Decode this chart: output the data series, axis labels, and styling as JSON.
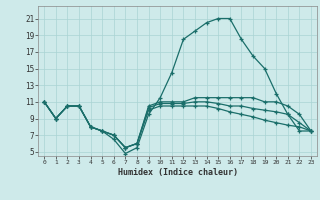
{
  "xlabel": "Humidex (Indice chaleur)",
  "bg_color": "#ceeaea",
  "line_color": "#1a6e6a",
  "grid_color": "#aad4d4",
  "xlim": [
    -0.5,
    23.5
  ],
  "ylim": [
    4.5,
    22.5
  ],
  "yticks": [
    5,
    7,
    9,
    11,
    13,
    15,
    17,
    19,
    21
  ],
  "xticks": [
    0,
    1,
    2,
    3,
    4,
    5,
    6,
    7,
    8,
    9,
    10,
    11,
    12,
    13,
    14,
    15,
    16,
    17,
    18,
    19,
    20,
    21,
    22,
    23
  ],
  "lines": [
    [
      11.0,
      9.0,
      10.5,
      10.5,
      8.0,
      7.5,
      6.5,
      4.8,
      5.5,
      9.5,
      11.5,
      14.5,
      18.5,
      19.5,
      20.5,
      21.0,
      21.0,
      18.5,
      16.5,
      15.0,
      12.0,
      9.5,
      7.5,
      7.5
    ],
    [
      11.0,
      9.0,
      10.5,
      10.5,
      8.0,
      7.5,
      7.0,
      5.5,
      6.0,
      10.5,
      11.0,
      11.0,
      11.0,
      11.5,
      11.5,
      11.5,
      11.5,
      11.5,
      11.5,
      11.0,
      11.0,
      10.5,
      9.5,
      7.5
    ],
    [
      11.0,
      9.0,
      10.5,
      10.5,
      8.0,
      7.5,
      7.0,
      5.5,
      6.0,
      10.3,
      10.8,
      10.8,
      10.8,
      11.0,
      11.0,
      10.8,
      10.5,
      10.5,
      10.2,
      10.0,
      9.8,
      9.5,
      8.5,
      7.5
    ],
    [
      11.0,
      9.0,
      10.5,
      10.5,
      8.0,
      7.5,
      7.0,
      5.5,
      6.0,
      10.0,
      10.5,
      10.5,
      10.5,
      10.5,
      10.5,
      10.2,
      9.8,
      9.5,
      9.2,
      8.8,
      8.5,
      8.2,
      8.0,
      7.5
    ]
  ]
}
